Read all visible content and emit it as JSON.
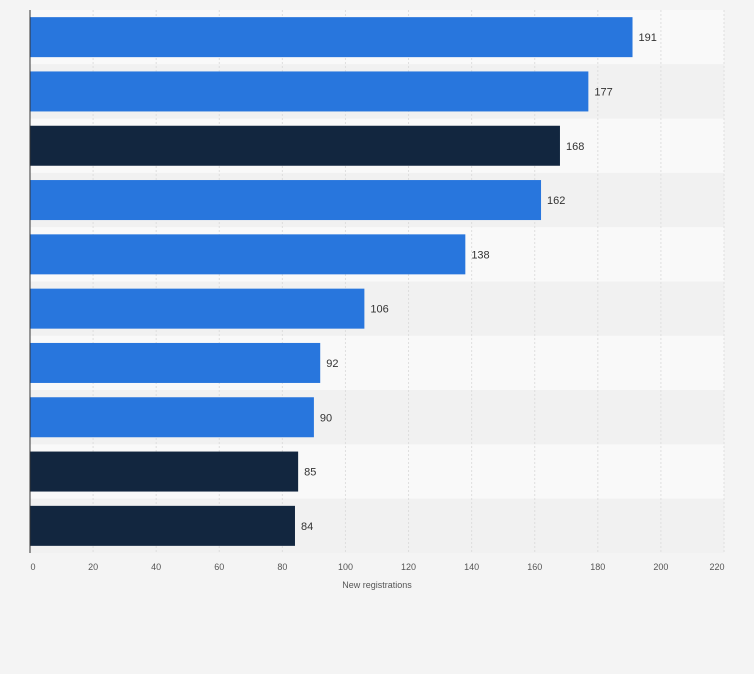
{
  "chart_data": {
    "type": "bar",
    "orientation": "horizontal",
    "title": "",
    "xlabel": "New registrations",
    "ylabel": "",
    "xlim": [
      0,
      220
    ],
    "x_ticks": [
      0,
      20,
      40,
      60,
      80,
      100,
      120,
      140,
      160,
      180,
      200,
      220
    ],
    "grid": true,
    "categories": [
      "",
      "",
      "",
      "",
      "",
      "",
      "",
      "",
      "",
      ""
    ],
    "values": [
      191,
      177,
      168,
      162,
      138,
      106,
      92,
      90,
      85,
      84
    ],
    "bar_colors": [
      "#2876dd",
      "#2876dd",
      "#12263f",
      "#2876dd",
      "#2876dd",
      "#2876dd",
      "#2876dd",
      "#2876dd",
      "#12263f",
      "#12263f"
    ],
    "data_labels": [
      "191",
      "177",
      "168",
      "162",
      "138",
      "106",
      "92",
      "90",
      "85",
      "84"
    ]
  },
  "colors": {
    "accent_blue": "#2876dd",
    "dark_navy": "#12263f",
    "page_background": "#f4f4f4",
    "band_light": "#f9f9f9",
    "band_dark": "#f1f1f1"
  }
}
